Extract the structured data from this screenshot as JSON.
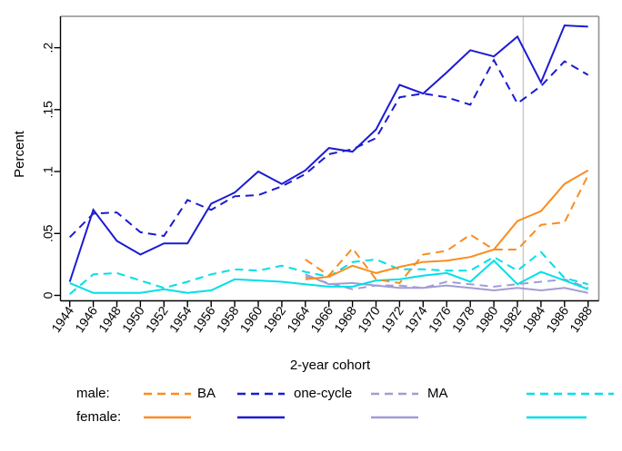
{
  "chart_data": {
    "type": "line",
    "title": "",
    "xlabel": "2-year cohort",
    "ylabel": "Percent",
    "x": [
      1944,
      1946,
      1948,
      1950,
      1952,
      1954,
      1956,
      1958,
      1960,
      1962,
      1964,
      1966,
      1968,
      1970,
      1972,
      1974,
      1976,
      1978,
      1980,
      1982,
      1984,
      1986,
      1988
    ],
    "x_tick_labels": [
      "1944",
      "1946",
      "1948",
      "1950",
      "1952",
      "1954",
      "1956",
      "1958",
      "1960",
      "1962",
      "1964",
      "1966",
      "1968",
      "1970",
      "1972",
      "1974",
      "1976",
      "1978",
      "1980",
      "1982",
      "1984",
      "1986",
      "1988"
    ],
    "y_ticks": [
      0,
      0.05,
      0.1,
      0.15,
      0.2
    ],
    "y_tick_labels": [
      "0",
      ".05",
      ".1",
      ".15",
      ".2"
    ],
    "xlim": [
      1943.2,
      1989.9
    ],
    "ylim": [
      -0.004,
      0.225
    ],
    "grid": false,
    "legend_position": "bottom",
    "reference_line_x": 1982.5,
    "series": [
      {
        "key": "male-ma",
        "name": "male MA",
        "color": "#a09cd8",
        "dashed": true,
        "values": [
          null,
          null,
          null,
          null,
          null,
          null,
          null,
          null,
          null,
          null,
          0.015,
          0.01,
          0.005,
          0.008,
          0.008,
          0.006,
          0.011,
          0.009,
          0.007,
          0.009,
          0.011,
          0.013,
          0.006
        ]
      },
      {
        "key": "female-ma",
        "name": "female MA",
        "color": "#a09cd8",
        "dashed": false,
        "values": [
          null,
          null,
          null,
          null,
          null,
          null,
          null,
          null,
          null,
          null,
          0.017,
          0.009,
          0.01,
          0.008,
          0.006,
          0.006,
          0.008,
          0.006,
          0.004,
          0.006,
          0.004,
          0.006,
          0.002
        ]
      },
      {
        "key": "male-unlabeled-cyan",
        "name": "male (unlabeled cyan series)",
        "color": "#00dfe8",
        "dashed": true,
        "values": [
          0.001,
          0.017,
          0.018,
          0.012,
          0.006,
          0.011,
          0.017,
          0.021,
          0.02,
          0.024,
          0.019,
          0.015,
          0.027,
          0.029,
          0.021,
          0.021,
          0.02,
          0.02,
          0.031,
          0.02,
          0.035,
          0.014,
          0.009
        ]
      },
      {
        "key": "female-unlabeled-cyan",
        "name": "female (unlabeled cyan series)",
        "color": "#00dfe8",
        "dashed": false,
        "values": [
          0.01,
          0.002,
          0.002,
          0.002,
          0.005,
          0.002,
          0.004,
          0.013,
          0.012,
          0.011,
          0.009,
          0.007,
          0.007,
          0.012,
          0.013,
          0.016,
          0.018,
          0.011,
          0.028,
          0.009,
          0.019,
          0.012,
          0.005
        ]
      },
      {
        "key": "male-ba",
        "name": "male BA",
        "color": "#fb8c1e",
        "dashed": true,
        "values": [
          null,
          null,
          null,
          null,
          null,
          null,
          null,
          null,
          null,
          null,
          0.029,
          0.016,
          0.038,
          0.013,
          0.01,
          0.033,
          0.036,
          0.049,
          0.037,
          0.037,
          0.057,
          0.059,
          0.097
        ]
      },
      {
        "key": "female-ba",
        "name": "female BA",
        "color": "#fb8c1e",
        "dashed": false,
        "values": [
          null,
          null,
          null,
          null,
          null,
          null,
          null,
          null,
          null,
          null,
          0.013,
          0.015,
          0.024,
          0.018,
          0.023,
          0.027,
          0.028,
          0.031,
          0.037,
          0.06,
          0.068,
          0.09,
          0.101
        ]
      },
      {
        "key": "male-one-cycle",
        "name": "male one-cycle",
        "color": "#1b1bd3",
        "dashed": true,
        "values": [
          0.047,
          0.066,
          0.067,
          0.051,
          0.048,
          0.077,
          0.069,
          0.08,
          0.081,
          0.088,
          0.098,
          0.114,
          0.118,
          0.127,
          0.16,
          0.163,
          0.16,
          0.154,
          0.19,
          0.155,
          0.169,
          0.189,
          0.178
        ]
      },
      {
        "key": "female-one-cycle",
        "name": "female one-cycle",
        "color": "#1b1bd3",
        "dashed": false,
        "values": [
          0.011,
          0.069,
          0.044,
          0.033,
          0.042,
          0.042,
          0.074,
          0.083,
          0.1,
          0.09,
          0.101,
          0.119,
          0.116,
          0.134,
          0.17,
          0.163,
          0.18,
          0.198,
          0.193,
          0.209,
          0.172,
          0.218,
          0.217
        ]
      }
    ]
  },
  "legend": {
    "rows": [
      {
        "label": "male:",
        "line_style": "dashed"
      },
      {
        "label": "female:",
        "line_style": "solid"
      }
    ],
    "entries": [
      {
        "label": "BA",
        "color": "#fb8c1e"
      },
      {
        "label": "one-cycle",
        "color": "#1b1bd3"
      },
      {
        "label": "MA",
        "color": "#a09cd8"
      },
      {
        "label": "",
        "color": "#00dfe8"
      }
    ]
  },
  "colors": {
    "background": "#ffffff",
    "axis": "#000000",
    "box_top_right": "#8f8f8f",
    "reference_line": "#c6c6c6",
    "orange": "#fb8c1e",
    "blue": "#1b1bd3",
    "purple": "#a09cd8",
    "cyan": "#00dfe8"
  }
}
